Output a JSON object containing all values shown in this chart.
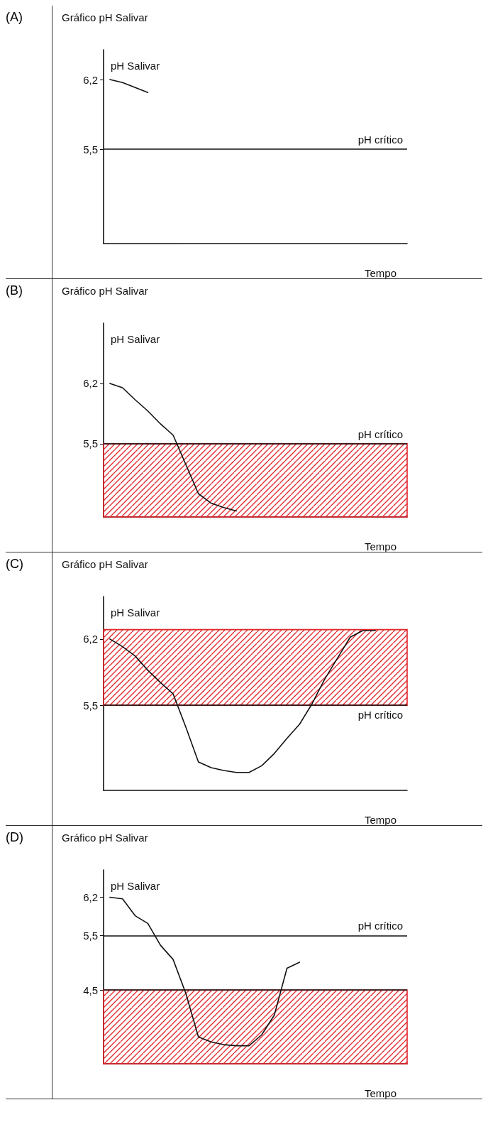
{
  "chart_data": [
    {
      "type": "line",
      "title": "Gráfico pH Salivar",
      "xlabel": "Tempo",
      "ylabel": "pH Salivar",
      "annotations": [
        "(A)"
      ],
      "categories": [
        null,
        null,
        null,
        null,
        null,
        null,
        null,
        null,
        null,
        null,
        null,
        null,
        null,
        null,
        null,
        null,
        null,
        null,
        null,
        null,
        null,
        null,
        null,
        null
      ],
      "series": [
        {
          "color": "#111111",
          "values": [
            6.2,
            6.17,
            6.12,
            6.07,
            null,
            null,
            null,
            null,
            null,
            null,
            null,
            null,
            null,
            null,
            null,
            null,
            null,
            null,
            null,
            null,
            null,
            null,
            null,
            null
          ]
        }
      ],
      "ylim": [
        4.55,
        6.5
      ],
      "yticks": [
        {
          "value": 6.2,
          "label": "6,2"
        },
        {
          "value": 5.5,
          "label": "5,5"
        }
      ],
      "ref_lines": [
        {
          "axis": "y",
          "value": 5.5,
          "label": "pH crítico"
        }
      ],
      "grid": false,
      "marker": "none"
    },
    {
      "type": "line",
      "title": "Gráfico pH Salivar",
      "xlabel": "Tempo",
      "ylabel": "pH Salivar",
      "annotations": [
        "(B)"
      ],
      "categories": [
        null,
        null,
        null,
        null,
        null,
        null,
        null,
        null,
        null,
        null,
        null,
        null,
        null,
        null,
        null,
        null,
        null,
        null,
        null,
        null,
        null,
        null,
        null,
        null
      ],
      "series": [
        {
          "color": "#111111",
          "values": [
            6.2,
            6.15,
            6.01,
            5.88,
            5.73,
            5.6,
            5.26,
            4.92,
            4.81,
            4.76,
            4.72,
            null,
            null,
            null,
            null,
            null,
            null,
            null,
            null,
            null,
            null,
            null,
            null,
            null
          ]
        }
      ],
      "ylim": [
        4.65,
        6.9
      ],
      "yticks": [
        {
          "value": 6.2,
          "label": "6,2"
        },
        {
          "value": 5.5,
          "label": "5,5"
        }
      ],
      "ref_lines": [
        {
          "axis": "y",
          "value": 5.5,
          "label": "pH crítico"
        }
      ],
      "bands": [
        {
          "axis": "y",
          "from": 4.65,
          "to": 5.5,
          "color": "#e3242b"
        }
      ],
      "grid": false,
      "marker": "none"
    },
    {
      "type": "line",
      "title": "Gráfico pH Salivar",
      "xlabel": "Tempo",
      "ylabel": "pH Salivar",
      "annotations": [
        "(C)"
      ],
      "categories": [
        null,
        null,
        null,
        null,
        null,
        null,
        null,
        null,
        null,
        null,
        null,
        null,
        null,
        null,
        null,
        null,
        null,
        null,
        null,
        null,
        null,
        null,
        null,
        null
      ],
      "series": [
        {
          "color": "#111111",
          "values": [
            6.2,
            6.12,
            6.02,
            5.87,
            5.74,
            5.62,
            5.27,
            4.9,
            4.84,
            4.81,
            4.79,
            4.79,
            4.86,
            4.99,
            5.15,
            5.3,
            5.52,
            5.78,
            6.0,
            6.22,
            6.29,
            6.29,
            null,
            null
          ]
        }
      ],
      "ylim": [
        4.6,
        6.65
      ],
      "yticks": [
        {
          "value": 6.2,
          "label": "6,2"
        },
        {
          "value": 5.5,
          "label": "5,5"
        }
      ],
      "ref_lines": [
        {
          "axis": "y",
          "value": 5.5,
          "label": "pH crítico"
        }
      ],
      "bands": [
        {
          "axis": "y",
          "from": 5.5,
          "to": 6.3,
          "color": "#e3242b"
        }
      ],
      "grid": false,
      "marker": "none"
    },
    {
      "type": "line",
      "title": "Gráfico pH Salivar",
      "xlabel": "Tempo",
      "ylabel": "pH Salivar",
      "annotations": [
        "(D)"
      ],
      "categories": [
        null,
        null,
        null,
        null,
        null,
        null,
        null,
        null,
        null,
        null,
        null,
        null,
        null,
        null,
        null,
        null,
        null,
        null,
        null,
        null,
        null,
        null,
        null,
        null
      ],
      "series": [
        {
          "color": "#111111",
          "values": [
            6.2,
            6.17,
            5.86,
            5.72,
            5.32,
            5.06,
            4.44,
            3.64,
            3.55,
            3.5,
            3.48,
            3.48,
            3.68,
            4.04,
            4.9,
            5.01,
            null,
            null,
            null,
            null,
            null,
            null,
            null,
            null
          ]
        }
      ],
      "ylim": [
        3.15,
        6.7
      ],
      "yticks": [
        {
          "value": 6.2,
          "label": "6,2"
        },
        {
          "value": 5.5,
          "label": "5,5"
        },
        {
          "value": 4.5,
          "label": "4,5"
        }
      ],
      "ref_lines": [
        {
          "axis": "y",
          "value": 5.5,
          "label": "pH crítico"
        },
        {
          "axis": "y",
          "value": 4.5
        }
      ],
      "bands": [
        {
          "axis": "y",
          "from": 3.15,
          "to": 4.5,
          "color": "#e3242b"
        }
      ],
      "grid": false,
      "marker": "none"
    }
  ]
}
